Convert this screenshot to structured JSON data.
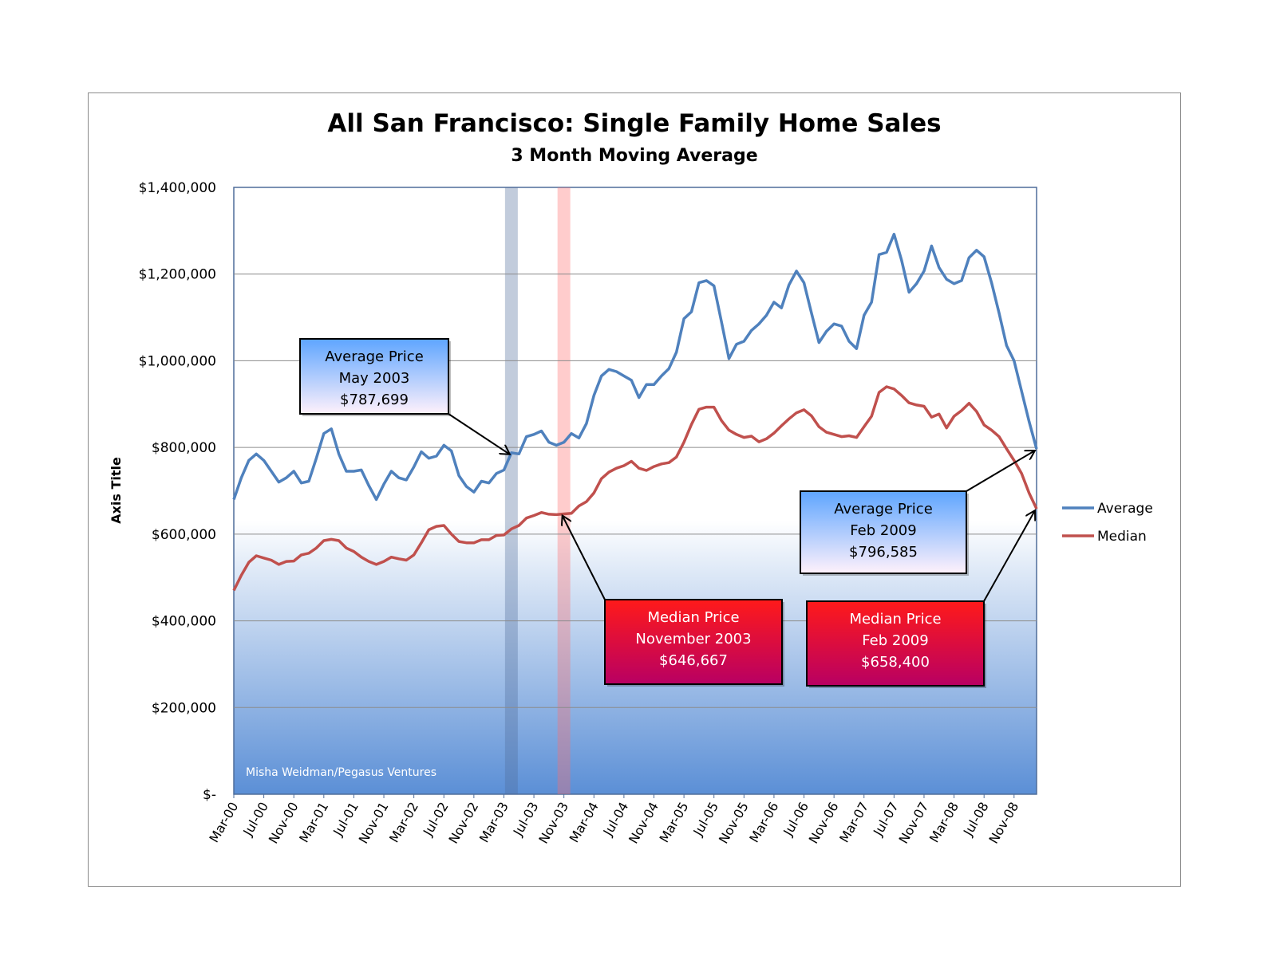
{
  "chart_data": {
    "type": "line",
    "title": "All San Francisco: Single Family Home Sales",
    "subtitle": "3 Month Moving Average",
    "ylabel": "Axis Title",
    "xlabel": "",
    "ylim": [
      0,
      1400000
    ],
    "y_ticks": [
      {
        "value": 0,
        "label": "$-"
      },
      {
        "value": 200000,
        "label": "$200,000"
      },
      {
        "value": 400000,
        "label": "$400,000"
      },
      {
        "value": 600000,
        "label": "$600,000"
      },
      {
        "value": 800000,
        "label": "$800,000"
      },
      {
        "value": 1000000,
        "label": "$1,000,000"
      },
      {
        "value": 1200000,
        "label": "$1,200,000"
      },
      {
        "value": 1400000,
        "label": "$1,400,000"
      }
    ],
    "grid": true,
    "legend": "right",
    "x_tick_labels": [
      "Mar-00",
      "Jul-00",
      "Nov-00",
      "Mar-01",
      "Jul-01",
      "Nov-01",
      "Mar-02",
      "Jul-02",
      "Nov-02",
      "Mar-03",
      "Jul-03",
      "Nov-03",
      "Mar-04",
      "Jul-04",
      "Nov-04",
      "Mar-05",
      "Jul-05",
      "Nov-05",
      "Mar-06",
      "Jul-06",
      "Nov-06",
      "Mar-07",
      "Jul-07",
      "Nov-07",
      "Mar-08",
      "Jul-08",
      "Nov-08"
    ],
    "series": [
      {
        "name": "Average",
        "color": "#4f81bd",
        "values": [
          680000,
          730000,
          770000,
          785000,
          770000,
          745000,
          720000,
          730000,
          745000,
          718000,
          722000,
          775000,
          832000,
          843000,
          785000,
          745000,
          745000,
          748000,
          712000,
          680000,
          715000,
          745000,
          730000,
          725000,
          755000,
          790000,
          775000,
          780000,
          805000,
          792000,
          735000,
          710000,
          697000,
          722000,
          718000,
          740000,
          748000,
          787699,
          785000,
          825000,
          830000,
          838000,
          812000,
          805000,
          812000,
          832000,
          822000,
          855000,
          920000,
          965000,
          980000,
          975000,
          965000,
          955000,
          915000,
          945000,
          945000,
          965000,
          982000,
          1020000,
          1097000,
          1113000,
          1180000,
          1185000,
          1173000,
          1090000,
          1005000,
          1038000,
          1045000,
          1070000,
          1085000,
          1105000,
          1135000,
          1122000,
          1175000,
          1207000,
          1180000,
          1110000,
          1042000,
          1068000,
          1085000,
          1080000,
          1045000,
          1028000,
          1105000,
          1135000,
          1245000,
          1250000,
          1292000,
          1232000,
          1158000,
          1178000,
          1207000,
          1265000,
          1215000,
          1188000,
          1178000,
          1185000,
          1238000,
          1255000,
          1240000,
          1180000,
          1110000,
          1035000,
          1000000,
          930000,
          860000,
          796585
        ]
      },
      {
        "name": "Median",
        "color": "#c0504d",
        "values": [
          470000,
          505000,
          535000,
          550000,
          545000,
          540000,
          530000,
          537000,
          538000,
          552000,
          556000,
          568000,
          585000,
          588000,
          585000,
          568000,
          560000,
          547000,
          537000,
          530000,
          537000,
          547000,
          543000,
          540000,
          552000,
          580000,
          610000,
          618000,
          620000,
          600000,
          583000,
          580000,
          580000,
          587000,
          587000,
          597000,
          598000,
          612000,
          620000,
          637000,
          643000,
          650000,
          646000,
          645000,
          646667,
          648000,
          665000,
          675000,
          695000,
          728000,
          743000,
          752000,
          758000,
          768000,
          752000,
          747000,
          756000,
          762000,
          765000,
          778000,
          812000,
          853000,
          888000,
          893000,
          893000,
          862000,
          840000,
          830000,
          823000,
          826000,
          813000,
          820000,
          833000,
          850000,
          866000,
          880000,
          887000,
          873000,
          848000,
          835000,
          830000,
          825000,
          827000,
          823000,
          848000,
          872000,
          927000,
          940000,
          935000,
          920000,
          903000,
          898000,
          895000,
          870000,
          877000,
          845000,
          872000,
          885000,
          902000,
          883000,
          852000,
          840000,
          825000,
          797000,
          770000,
          740000,
          695000,
          658400
        ]
      }
    ],
    "highlights": [
      {
        "index": 37,
        "color": "#4f6d9a"
      },
      {
        "index": 44,
        "color": "#ff6e6e"
      }
    ],
    "annotations": [
      {
        "lines": [
          "Average Price",
          "May 2003",
          "$787,699"
        ],
        "series": 0,
        "index": 37,
        "style": "blue"
      },
      {
        "lines": [
          "Median  Price",
          "November 2003",
          "$646,667"
        ],
        "series": 1,
        "index": 44,
        "style": "red"
      },
      {
        "lines": [
          "Average Price",
          "Feb  2009",
          "$796,585"
        ],
        "series": 0,
        "index": 107,
        "style": "blue"
      },
      {
        "lines": [
          "Median  Price",
          "Feb 2009",
          "$658,400"
        ],
        "series": 1,
        "index": 107,
        "style": "red"
      }
    ],
    "watermark": "Misha Weidman/Pegasus Ventures"
  }
}
